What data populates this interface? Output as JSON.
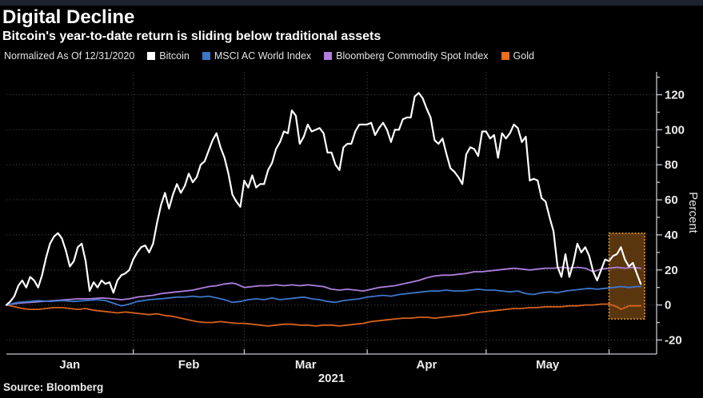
{
  "header": {
    "title": "Digital Decline",
    "subtitle": "Bitcoin's year-to-date return is sliding below traditional assets"
  },
  "legend": {
    "note": "Normalized As Of 12/31/2020",
    "items": [
      {
        "label": "Bitcoin",
        "color": "#ffffff"
      },
      {
        "label": "MSCI AC World Index",
        "color": "#3d77cc"
      },
      {
        "label": "Bloomberg Commodity Spot Index",
        "color": "#b07fdd"
      },
      {
        "label": "Gold",
        "color": "#e8701e"
      }
    ]
  },
  "source": "Source: Bloomberg",
  "chart_data": {
    "type": "line",
    "title": "Digital Decline",
    "subtitle": "Bitcoin's year-to-date return is sliding below traditional assets",
    "x_unit": "days since 12/31/2020",
    "xlabel_year": "2021",
    "ylabel": "Percent",
    "xlim": [
      0,
      164
    ],
    "ylim": [
      -28,
      133
    ],
    "grid": true,
    "y_ticks": [
      -20,
      0,
      20,
      40,
      60,
      80,
      100,
      120
    ],
    "y_minor_ticks": [
      -10,
      10,
      30,
      50,
      70,
      90,
      110,
      130
    ],
    "x_month_ticks": {
      "days": [
        32,
        60,
        91,
        121,
        152
      ]
    },
    "x_month_labels": [
      {
        "label": "Jan",
        "day": 16
      },
      {
        "label": "Feb",
        "day": 46
      },
      {
        "label": "Mar",
        "day": 75.5
      },
      {
        "label": "Apr",
        "day": 106
      },
      {
        "label": "May",
        "day": 136.5
      }
    ],
    "highlight_box": {
      "x0": 152,
      "x1": 161,
      "y0": -8,
      "y1": 41,
      "fill": "#c8781e",
      "fill_opacity": 0.45,
      "border_color": "#efa02f"
    },
    "series": [
      {
        "name": "Bitcoin",
        "color": "#ffffff",
        "width": 2.2,
        "start_day": 0,
        "step": 1,
        "values": [
          0,
          2,
          5,
          11,
          14,
          10,
          16,
          14,
          10,
          17,
          27,
          35,
          39,
          41,
          38,
          31,
          22,
          25,
          33,
          35,
          25,
          8,
          13,
          10,
          14,
          12,
          13,
          7,
          14,
          17,
          18,
          20,
          26,
          30,
          33,
          34,
          30,
          35,
          47,
          57,
          64,
          55,
          63,
          69,
          64,
          68,
          75,
          70,
          73,
          80,
          82,
          88,
          94,
          98,
          90,
          84,
          75,
          63,
          59,
          56,
          71,
          67,
          74,
          67,
          69,
          69,
          77,
          81,
          89,
          93,
          99,
          98,
          111,
          108,
          92,
          96,
          103,
          99,
          100,
          101,
          98,
          87,
          87,
          80,
          77,
          90,
          92,
          92,
          99,
          103,
          103,
          103,
          104,
          97,
          101,
          104,
          100,
          93,
          100,
          100,
          106,
          107,
          107,
          119,
          121,
          118,
          112,
          107,
          94,
          92,
          95,
          86,
          78,
          76,
          73,
          69,
          86,
          90,
          89,
          85,
          99,
          99,
          95,
          97,
          84,
          98,
          95,
          98,
          103,
          101,
          93,
          96,
          71,
          72,
          71,
          61,
          59,
          50,
          42,
          22,
          16,
          29,
          16,
          24,
          35,
          30,
          33,
          28,
          19,
          14,
          20,
          26,
          25,
          28,
          29,
          33,
          26,
          22,
          24,
          18,
          12
        ]
      },
      {
        "name": "MSCI AC World Index",
        "color": "#3d77cc",
        "width": 1.8,
        "points": [
          [
            0,
            0
          ],
          [
            3,
            1.5
          ],
          [
            6,
            2
          ],
          [
            8,
            2.5
          ],
          [
            11,
            2
          ],
          [
            14,
            2.5
          ],
          [
            17,
            2
          ],
          [
            20,
            2.5
          ],
          [
            23,
            3
          ],
          [
            25,
            2.5
          ],
          [
            27,
            1
          ],
          [
            29,
            -0.5
          ],
          [
            31,
            0.5
          ],
          [
            33,
            2
          ],
          [
            36,
            3
          ],
          [
            39,
            3.5
          ],
          [
            41,
            4
          ],
          [
            43,
            4.5
          ],
          [
            45,
            4.5
          ],
          [
            47,
            5
          ],
          [
            49,
            4.5
          ],
          [
            51,
            5
          ],
          [
            53,
            4
          ],
          [
            55,
            3
          ],
          [
            57,
            1.5
          ],
          [
            59,
            2
          ],
          [
            61,
            3
          ],
          [
            63,
            3.5
          ],
          [
            65,
            3
          ],
          [
            67,
            4
          ],
          [
            69,
            3
          ],
          [
            71,
            3.5
          ],
          [
            73,
            4
          ],
          [
            75,
            4.5
          ],
          [
            77,
            3.5
          ],
          [
            79,
            3
          ],
          [
            81,
            2
          ],
          [
            83,
            1.5
          ],
          [
            85,
            2.5
          ],
          [
            87,
            3
          ],
          [
            89,
            3.5
          ],
          [
            91,
            4.5
          ],
          [
            93,
            5
          ],
          [
            95,
            5.5
          ],
          [
            97,
            5
          ],
          [
            99,
            6
          ],
          [
            101,
            6.5
          ],
          [
            103,
            7
          ],
          [
            105,
            7.5
          ],
          [
            107,
            8
          ],
          [
            109,
            8
          ],
          [
            111,
            8.5
          ],
          [
            113,
            8
          ],
          [
            115,
            8
          ],
          [
            117,
            8.5
          ],
          [
            119,
            9
          ],
          [
            121,
            8.5
          ],
          [
            123,
            8.5
          ],
          [
            125,
            8
          ],
          [
            127,
            7.5
          ],
          [
            129,
            8
          ],
          [
            131,
            6.5
          ],
          [
            133,
            6
          ],
          [
            135,
            7
          ],
          [
            137,
            7.5
          ],
          [
            139,
            7
          ],
          [
            141,
            8
          ],
          [
            143,
            8.5
          ],
          [
            145,
            9
          ],
          [
            147,
            9.5
          ],
          [
            149,
            9
          ],
          [
            151,
            9.5
          ],
          [
            153,
            10
          ],
          [
            155,
            10.5
          ],
          [
            157,
            10
          ],
          [
            159,
            10.5
          ],
          [
            160,
            10.5
          ]
        ]
      },
      {
        "name": "Bloomberg Commodity Spot Index",
        "color": "#b07fdd",
        "width": 1.8,
        "points": [
          [
            0,
            0
          ],
          [
            3,
            1
          ],
          [
            6,
            1.5
          ],
          [
            9,
            2
          ],
          [
            12,
            2.5
          ],
          [
            15,
            3
          ],
          [
            18,
            3.5
          ],
          [
            21,
            3.5
          ],
          [
            24,
            4
          ],
          [
            27,
            3.5
          ],
          [
            29,
            3
          ],
          [
            31,
            3.5
          ],
          [
            33,
            4.5
          ],
          [
            35,
            5
          ],
          [
            37,
            5.5
          ],
          [
            39,
            6.5
          ],
          [
            41,
            7
          ],
          [
            43,
            7.5
          ],
          [
            45,
            8
          ],
          [
            47,
            8.5
          ],
          [
            49,
            9.5
          ],
          [
            51,
            10.5
          ],
          [
            53,
            11
          ],
          [
            55,
            12
          ],
          [
            57,
            12.5
          ],
          [
            58,
            12
          ],
          [
            60,
            10
          ],
          [
            62,
            10.5
          ],
          [
            64,
            11
          ],
          [
            66,
            11
          ],
          [
            68,
            11.5
          ],
          [
            70,
            11
          ],
          [
            72,
            11.5
          ],
          [
            74,
            11
          ],
          [
            76,
            11.5
          ],
          [
            78,
            11
          ],
          [
            80,
            10.5
          ],
          [
            82,
            9
          ],
          [
            84,
            8.5
          ],
          [
            86,
            9
          ],
          [
            88,
            8.5
          ],
          [
            90,
            8
          ],
          [
            92,
            9
          ],
          [
            94,
            10
          ],
          [
            96,
            10.5
          ],
          [
            98,
            11
          ],
          [
            100,
            12
          ],
          [
            102,
            13
          ],
          [
            104,
            14
          ],
          [
            106,
            15.5
          ],
          [
            108,
            16.5
          ],
          [
            110,
            17
          ],
          [
            112,
            17
          ],
          [
            114,
            17.5
          ],
          [
            116,
            18
          ],
          [
            118,
            19
          ],
          [
            120,
            19
          ],
          [
            122,
            19.5
          ],
          [
            124,
            20
          ],
          [
            126,
            20.5
          ],
          [
            128,
            21
          ],
          [
            130,
            20.5
          ],
          [
            132,
            20
          ],
          [
            134,
            20.5
          ],
          [
            136,
            21
          ],
          [
            138,
            21
          ],
          [
            140,
            21.5
          ],
          [
            142,
            21
          ],
          [
            144,
            21.5
          ],
          [
            146,
            21
          ],
          [
            148,
            19
          ],
          [
            150,
            20.5
          ],
          [
            152,
            21
          ],
          [
            154,
            21.5
          ],
          [
            156,
            21
          ],
          [
            158,
            21.5
          ],
          [
            160,
            21
          ]
        ]
      },
      {
        "name": "Gold",
        "color": "#d8621f",
        "width": 1.8,
        "points": [
          [
            0,
            0
          ],
          [
            2,
            -1
          ],
          [
            4,
            -2
          ],
          [
            6,
            -2.5
          ],
          [
            8,
            -2.5
          ],
          [
            10,
            -2
          ],
          [
            12,
            -1.5
          ],
          [
            14,
            -1.5
          ],
          [
            16,
            -2
          ],
          [
            18,
            -2.5
          ],
          [
            20,
            -2
          ],
          [
            22,
            -3
          ],
          [
            24,
            -3.5
          ],
          [
            26,
            -4
          ],
          [
            28,
            -4.5
          ],
          [
            30,
            -4
          ],
          [
            32,
            -4.5
          ],
          [
            34,
            -5
          ],
          [
            36,
            -5.5
          ],
          [
            38,
            -5
          ],
          [
            40,
            -6
          ],
          [
            42,
            -6.5
          ],
          [
            44,
            -7.5
          ],
          [
            46,
            -8.5
          ],
          [
            48,
            -9.5
          ],
          [
            50,
            -10
          ],
          [
            52,
            -10
          ],
          [
            54,
            -9.5
          ],
          [
            56,
            -10
          ],
          [
            58,
            -10.5
          ],
          [
            60,
            -10.5
          ],
          [
            62,
            -11
          ],
          [
            64,
            -11.5
          ],
          [
            66,
            -12
          ],
          [
            68,
            -11.5
          ],
          [
            70,
            -11
          ],
          [
            72,
            -11
          ],
          [
            74,
            -11.5
          ],
          [
            76,
            -11.5
          ],
          [
            78,
            -12
          ],
          [
            80,
            -11.5
          ],
          [
            82,
            -11.5
          ],
          [
            84,
            -12
          ],
          [
            86,
            -11.5
          ],
          [
            88,
            -11
          ],
          [
            90,
            -10.5
          ],
          [
            92,
            -9.5
          ],
          [
            94,
            -9
          ],
          [
            96,
            -8.5
          ],
          [
            98,
            -8
          ],
          [
            100,
            -7.5
          ],
          [
            102,
            -7.5
          ],
          [
            104,
            -7
          ],
          [
            106,
            -7
          ],
          [
            108,
            -7.5
          ],
          [
            110,
            -7
          ],
          [
            112,
            -6.5
          ],
          [
            114,
            -6
          ],
          [
            116,
            -5.5
          ],
          [
            118,
            -4.5
          ],
          [
            120,
            -4
          ],
          [
            122,
            -3.5
          ],
          [
            124,
            -3
          ],
          [
            126,
            -2.5
          ],
          [
            128,
            -2
          ],
          [
            130,
            -2
          ],
          [
            132,
            -1.5
          ],
          [
            134,
            -1.5
          ],
          [
            136,
            -1
          ],
          [
            138,
            -1
          ],
          [
            140,
            -1
          ],
          [
            142,
            -0.5
          ],
          [
            144,
            -0.5
          ],
          [
            146,
            0
          ],
          [
            148,
            0
          ],
          [
            150,
            0.5
          ],
          [
            152,
            0.5
          ],
          [
            154,
            -1
          ],
          [
            155,
            -2.5
          ],
          [
            156,
            -1.5
          ],
          [
            157,
            -0.5
          ],
          [
            158,
            -0.5
          ],
          [
            160,
            -0.5
          ]
        ]
      }
    ]
  }
}
